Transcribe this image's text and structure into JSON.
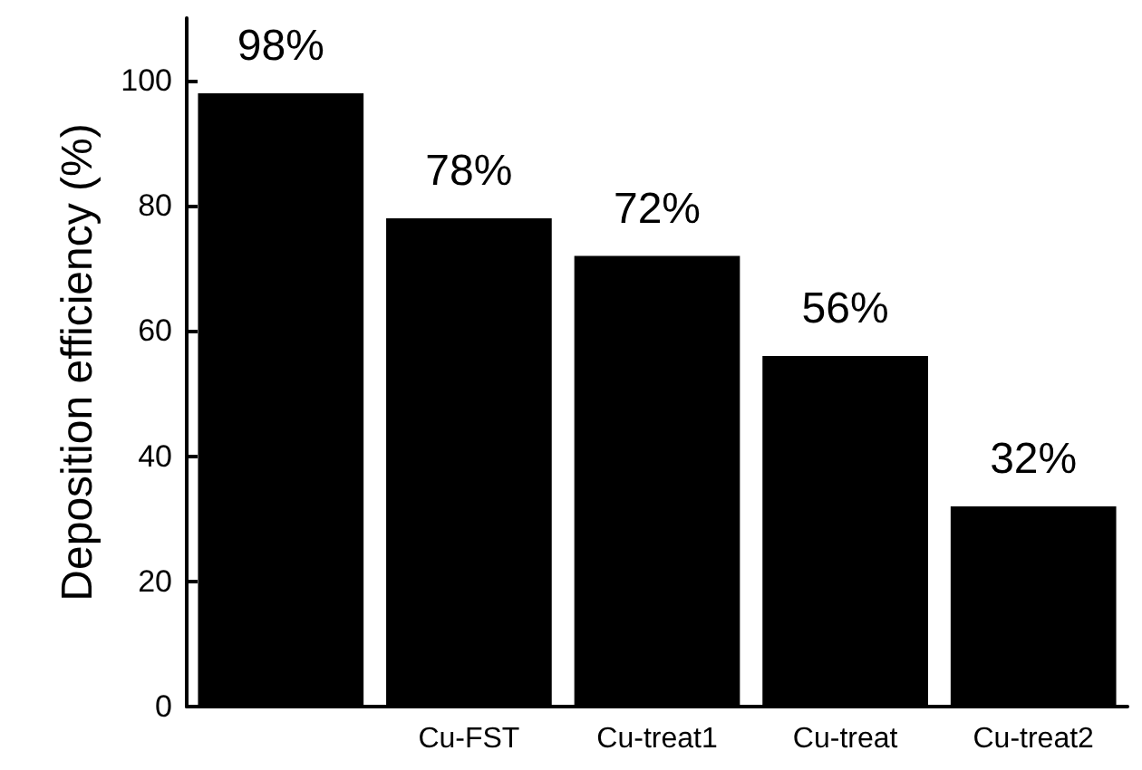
{
  "chart_data": {
    "type": "bar",
    "ylabel": "Deposition efficiency (%)",
    "categories": [
      null,
      "Cu-FST",
      "Cu-treat1",
      "Cu-treat",
      "Cu-treat2"
    ],
    "values": [
      98,
      78,
      72,
      56,
      32
    ],
    "value_labels": [
      "98%",
      "78%",
      "72%",
      "56%",
      "32%"
    ],
    "color": "#000000",
    "ylim": [
      0,
      110
    ],
    "yticks": [
      0,
      20,
      40,
      60,
      80,
      100
    ],
    "grid": false
  }
}
